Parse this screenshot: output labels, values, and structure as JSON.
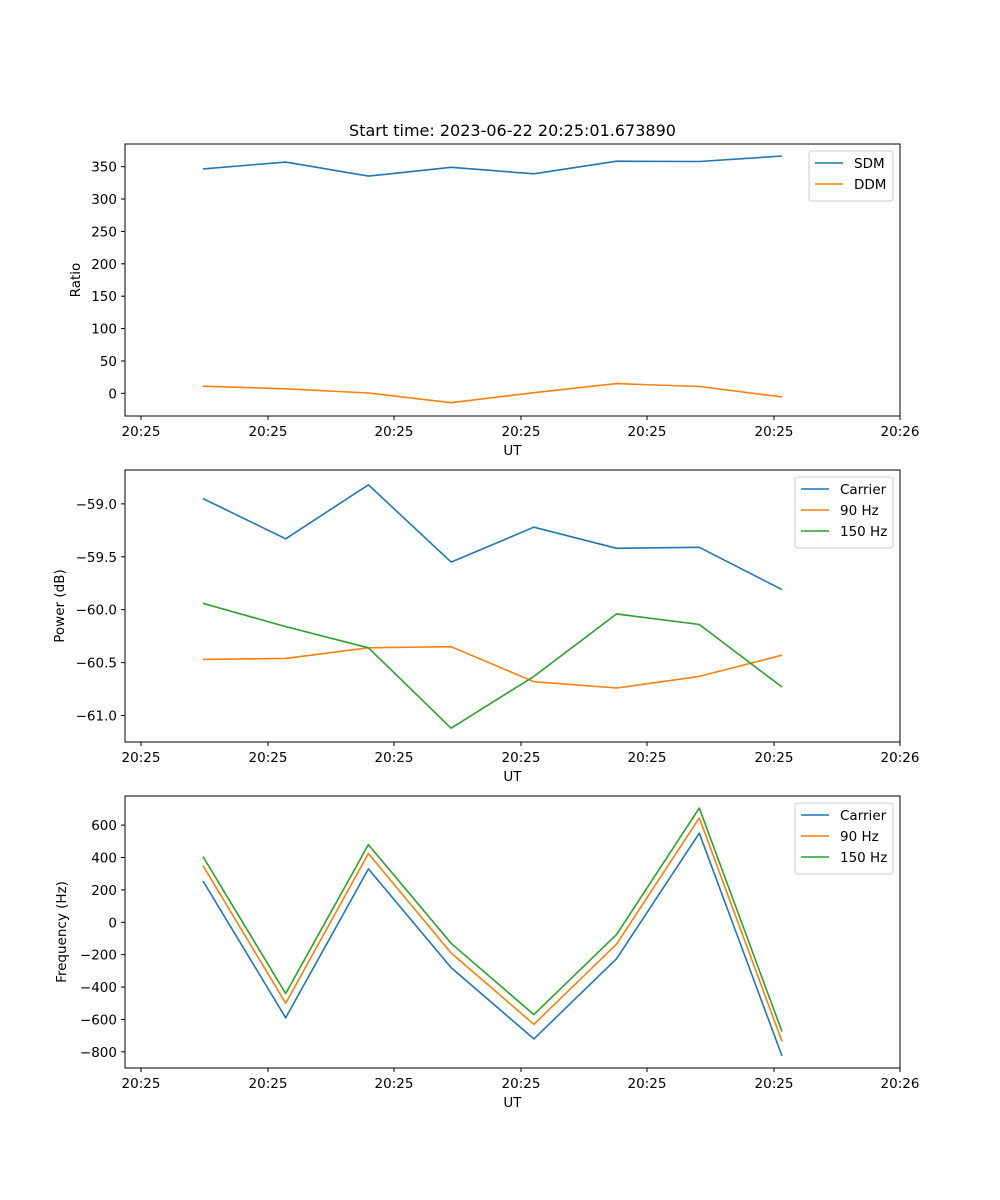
{
  "chart_data": [
    {
      "type": "line",
      "title": "Start time: 2023-06-22 20:25:01.673890",
      "xlabel": "UT",
      "ylabel": "Ratio",
      "x_ticks": [
        "20:25",
        "20:25",
        "20:25",
        "20:25",
        "20:25",
        "20:25",
        "20:26"
      ],
      "x": [
        1,
        2,
        3,
        4,
        5,
        6,
        7,
        8
      ],
      "xlim": [
        0.8,
        10
      ],
      "y_ticks": [
        "0",
        "50",
        "100",
        "150",
        "200",
        "250",
        "300",
        "350"
      ],
      "ylim": [
        -35,
        385
      ],
      "legend": "top-right",
      "grid": false,
      "series": [
        {
          "name": "SDM",
          "color": "#1f77b4",
          "values": [
            346.5,
            357,
            335.5,
            349,
            339,
            358.5,
            358,
            366.5
          ]
        },
        {
          "name": "DDM",
          "color": "#ff7f0e",
          "values": [
            11,
            7,
            0.5,
            -14.5,
            1,
            15,
            10.5,
            -5.5
          ]
        }
      ]
    },
    {
      "type": "line",
      "title": "",
      "xlabel": "UT",
      "ylabel": "Power (dB)",
      "x_ticks": [
        "20:25",
        "20:25",
        "20:25",
        "20:25",
        "20:25",
        "20:25",
        "20:26"
      ],
      "x": [
        1,
        2,
        3,
        4,
        5,
        6,
        7,
        8
      ],
      "xlim": [
        0.8,
        10
      ],
      "y_ticks": [
        "−61.0",
        "−60.5",
        "−60.0",
        "−59.5",
        "−59.0"
      ],
      "ylim": [
        -61.25,
        -58.68
      ],
      "legend": "top-right",
      "grid": false,
      "series": [
        {
          "name": "Carrier",
          "color": "#1f77b4",
          "values": [
            -58.95,
            -59.33,
            -58.82,
            -59.55,
            -59.22,
            -59.42,
            -59.41,
            -59.81
          ]
        },
        {
          "name": "90 Hz",
          "color": "#ff7f0e",
          "values": [
            -60.47,
            -60.46,
            -60.36,
            -60.35,
            -60.68,
            -60.74,
            -60.63,
            -60.43
          ]
        },
        {
          "name": "150 Hz",
          "color": "#2ca02c",
          "values": [
            -59.94,
            -60.16,
            -60.36,
            -61.12,
            -60.63,
            -60.04,
            -60.14,
            -60.73
          ]
        }
      ]
    },
    {
      "type": "line",
      "title": "",
      "xlabel": "UT",
      "ylabel": "Frequency (Hz)",
      "x_ticks": [
        "20:25",
        "20:25",
        "20:25",
        "20:25",
        "20:25",
        "20:25",
        "20:26"
      ],
      "x": [
        1,
        2,
        3,
        4,
        5,
        6,
        7,
        8
      ],
      "xlim": [
        0.8,
        10
      ],
      "y_ticks": [
        "−800",
        "−600",
        "−400",
        "−200",
        "0",
        "200",
        "400",
        "600"
      ],
      "ylim": [
        -900,
        780
      ],
      "legend": "top-right",
      "grid": false,
      "series": [
        {
          "name": "Carrier",
          "color": "#1f77b4",
          "values": [
            255,
            -590,
            330,
            -280,
            -720,
            -225,
            550,
            -825
          ]
        },
        {
          "name": "90 Hz",
          "color": "#ff7f0e",
          "values": [
            350,
            -500,
            425,
            -190,
            -630,
            -135,
            645,
            -735
          ]
        },
        {
          "name": "150 Hz",
          "color": "#2ca02c",
          "values": [
            405,
            -440,
            480,
            -130,
            -570,
            -75,
            705,
            -675
          ]
        }
      ]
    }
  ]
}
